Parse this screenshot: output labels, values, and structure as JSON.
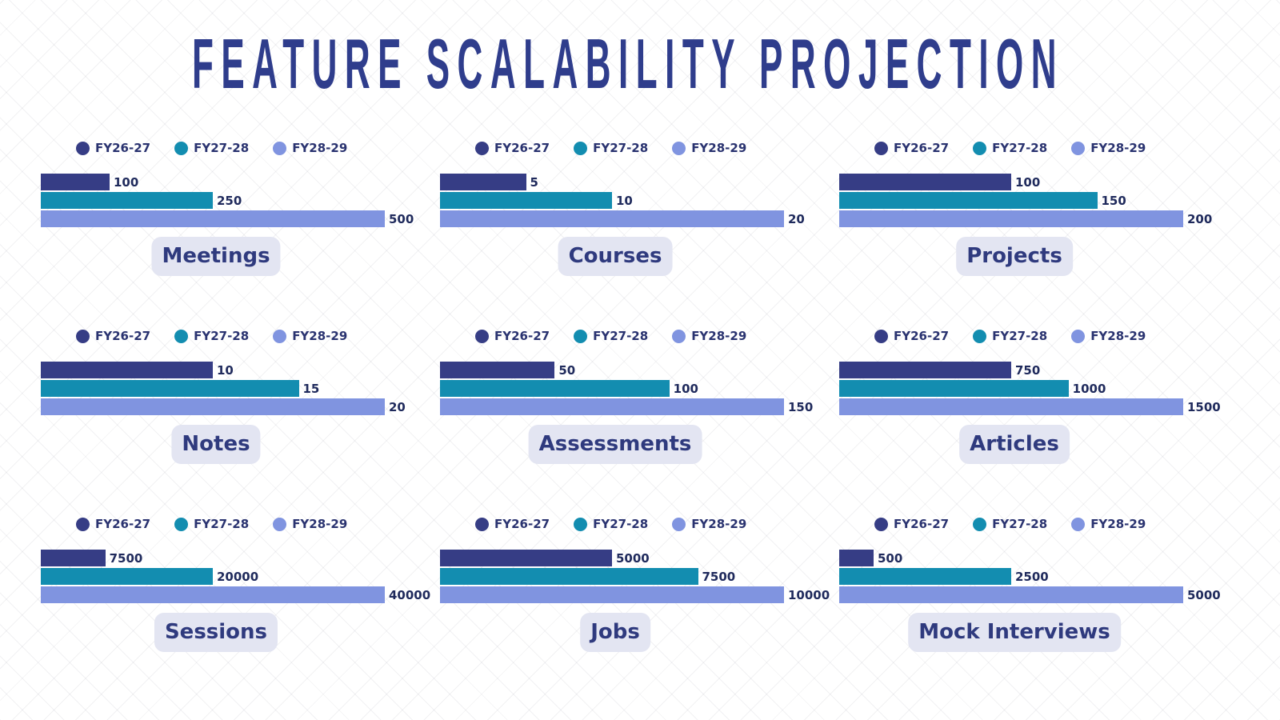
{
  "title": "FEATURE SCALABILITY PROJECTION",
  "colors": {
    "FY26-27": "#363d85",
    "FY27-28": "#138db0",
    "FY28-29": "#8094e0",
    "title": "#2f3d8c",
    "pill_bg": "#e3e5f2"
  },
  "chart_data": [
    {
      "type": "bar",
      "orientation": "horizontal",
      "title": "Meetings",
      "series": [
        {
          "name": "FY26-27",
          "value": 100
        },
        {
          "name": "FY27-28",
          "value": 250
        },
        {
          "name": "FY28-29",
          "value": 500
        }
      ],
      "xlim": [
        0,
        500
      ]
    },
    {
      "type": "bar",
      "orientation": "horizontal",
      "title": "Courses",
      "series": [
        {
          "name": "FY26-27",
          "value": 5
        },
        {
          "name": "FY27-28",
          "value": 10
        },
        {
          "name": "FY28-29",
          "value": 20
        }
      ],
      "xlim": [
        0,
        20
      ]
    },
    {
      "type": "bar",
      "orientation": "horizontal",
      "title": "Projects",
      "series": [
        {
          "name": "FY26-27",
          "value": 100
        },
        {
          "name": "FY27-28",
          "value": 150
        },
        {
          "name": "FY28-29",
          "value": 200
        }
      ],
      "xlim": [
        0,
        200
      ]
    },
    {
      "type": "bar",
      "orientation": "horizontal",
      "title": "Notes",
      "series": [
        {
          "name": "FY26-27",
          "value": 10
        },
        {
          "name": "FY27-28",
          "value": 15
        },
        {
          "name": "FY28-29",
          "value": 20
        }
      ],
      "xlim": [
        0,
        20
      ]
    },
    {
      "type": "bar",
      "orientation": "horizontal",
      "title": "Assessments",
      "series": [
        {
          "name": "FY26-27",
          "value": 50
        },
        {
          "name": "FY27-28",
          "value": 100
        },
        {
          "name": "FY28-29",
          "value": 150
        }
      ],
      "xlim": [
        0,
        150
      ]
    },
    {
      "type": "bar",
      "orientation": "horizontal",
      "title": "Articles",
      "series": [
        {
          "name": "FY26-27",
          "value": 750
        },
        {
          "name": "FY27-28",
          "value": 1000
        },
        {
          "name": "FY28-29",
          "value": 1500
        }
      ],
      "xlim": [
        0,
        1500
      ]
    },
    {
      "type": "bar",
      "orientation": "horizontal",
      "title": "Sessions",
      "series": [
        {
          "name": "FY26-27",
          "value": 7500
        },
        {
          "name": "FY27-28",
          "value": 20000
        },
        {
          "name": "FY28-29",
          "value": 40000
        }
      ],
      "xlim": [
        0,
        40000
      ]
    },
    {
      "type": "bar",
      "orientation": "horizontal",
      "title": "Jobs",
      "series": [
        {
          "name": "FY26-27",
          "value": 5000
        },
        {
          "name": "FY27-28",
          "value": 7500
        },
        {
          "name": "FY28-29",
          "value": 10000
        }
      ],
      "xlim": [
        0,
        10000
      ]
    },
    {
      "type": "bar",
      "orientation": "horizontal",
      "title": "Mock Interviews",
      "series": [
        {
          "name": "FY26-27",
          "value": 500
        },
        {
          "name": "FY27-28",
          "value": 2500
        },
        {
          "name": "FY28-29",
          "value": 5000
        }
      ],
      "xlim": [
        0,
        5000
      ]
    }
  ]
}
